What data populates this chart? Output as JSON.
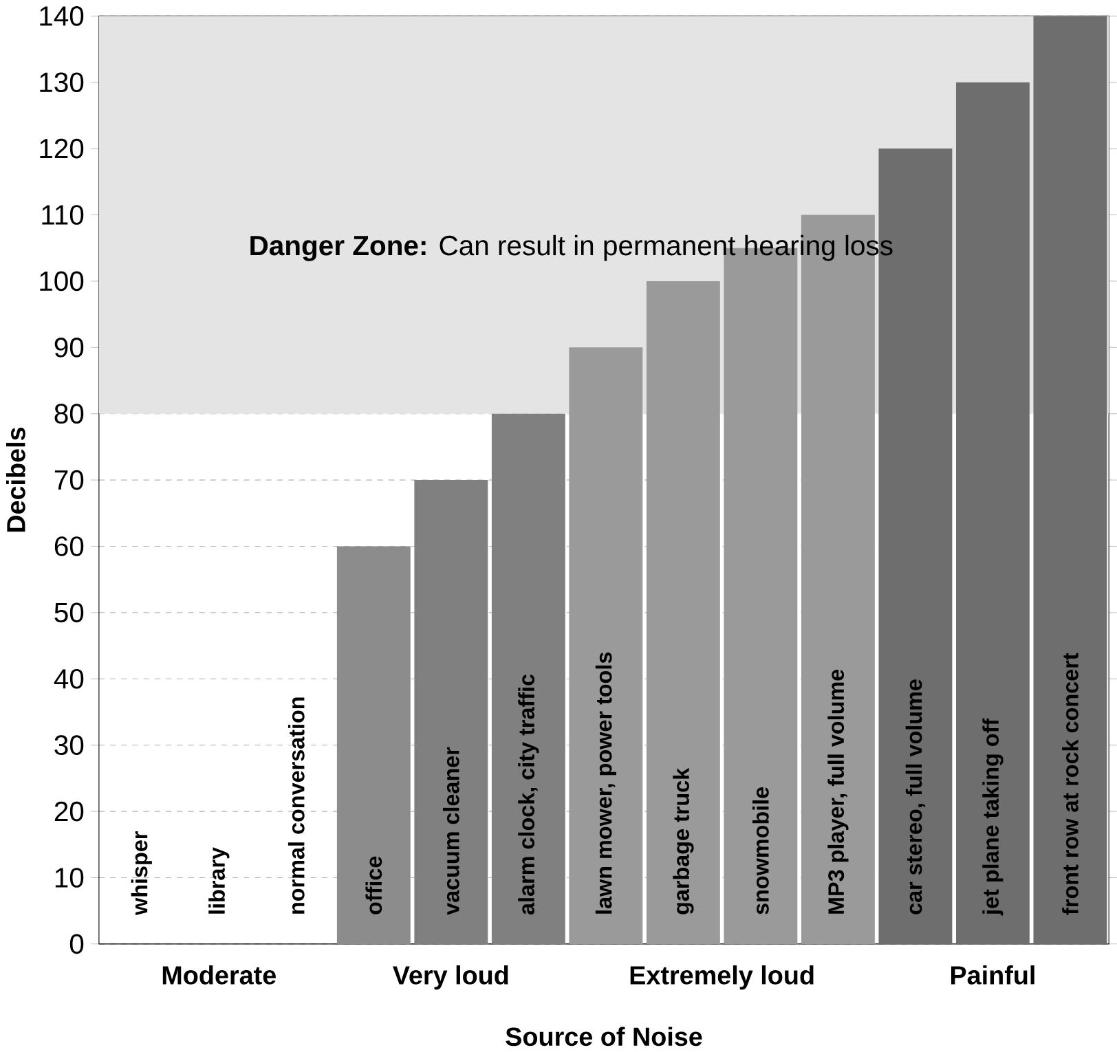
{
  "chart_data": {
    "type": "bar",
    "xlabel": "Source of Noise",
    "ylabel": "Decibels",
    "categories": [
      "whisper",
      "library",
      "normal conversation",
      "office",
      "vacuum cleaner",
      "alarm clock, city traffic",
      "lawn mower, power tools",
      "garbage truck",
      "snowmobile",
      "MP3 player, full volume",
      "car stereo, full volume",
      "jet plane taking off",
      "front row at rock concert"
    ],
    "values": [
      null,
      null,
      null,
      60,
      70,
      80,
      90,
      100,
      105,
      110,
      120,
      130,
      140
    ],
    "colors": [
      null,
      null,
      null,
      "#8c8c8c",
      "#808080",
      "#808080",
      "#9a9a9a",
      "#9a9a9a",
      "#9a9a9a",
      "#9a9a9a",
      "#6e6e6e",
      "#6e6e6e",
      "#6e6e6e"
    ],
    "ylim": [
      0,
      140
    ],
    "yticks": [
      0,
      10,
      20,
      30,
      40,
      50,
      60,
      70,
      80,
      90,
      100,
      110,
      120,
      130,
      140
    ],
    "grid": "y",
    "bands": [
      {
        "axis": "y",
        "from": 80,
        "to": 140,
        "label": "**Danger Zone:** Can result in permanent hearing loss",
        "color": "#e4e4e4"
      }
    ],
    "annotations": [
      "Moderate",
      "Very loud",
      "Extremely loud",
      "Painful"
    ]
  }
}
